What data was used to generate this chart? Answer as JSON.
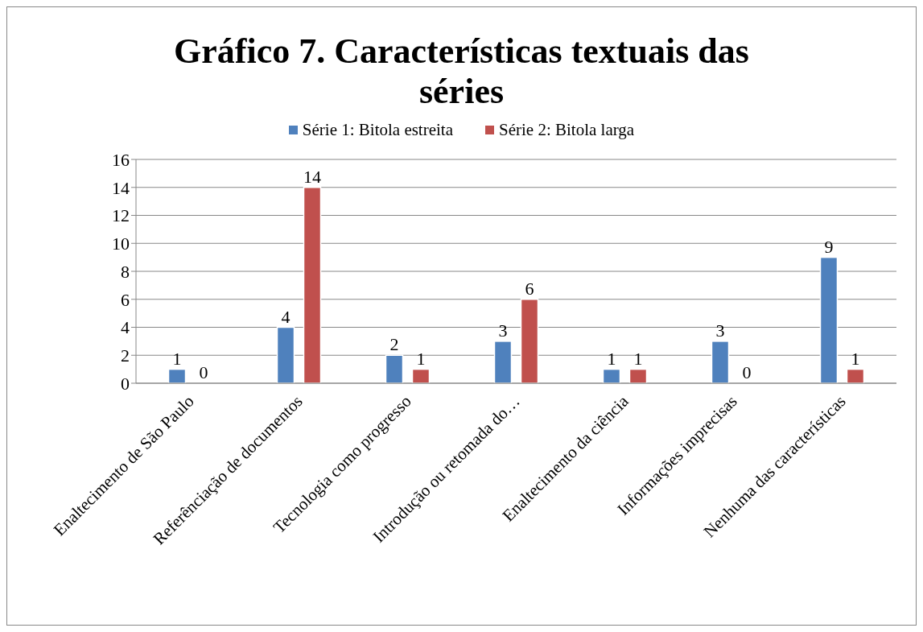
{
  "chart_data": {
    "type": "bar",
    "title": "Gráfico 7. Características textuais das séries",
    "categories": [
      "Enaltecimento de São Paulo",
      "Referênciação de documentos",
      "Tecnologia como progresso",
      "Introdução ou retomada do…",
      "Enaltecimento da ciência",
      "Informações imprecisas",
      "Nenhuma das características"
    ],
    "series": [
      {
        "name": "Série 1: Bitola estreita",
        "color": "#4f81bd",
        "values": [
          1,
          4,
          2,
          3,
          1,
          3,
          9
        ]
      },
      {
        "name": "Série 2: Bitola larga",
        "color": "#c0504d",
        "values": [
          0,
          14,
          1,
          6,
          1,
          0,
          1
        ]
      }
    ],
    "ylim": [
      0,
      16
    ],
    "yticks": [
      0,
      2,
      4,
      6,
      8,
      10,
      12,
      14,
      16
    ],
    "grid": "y",
    "legend": "top",
    "data_labels": true
  }
}
